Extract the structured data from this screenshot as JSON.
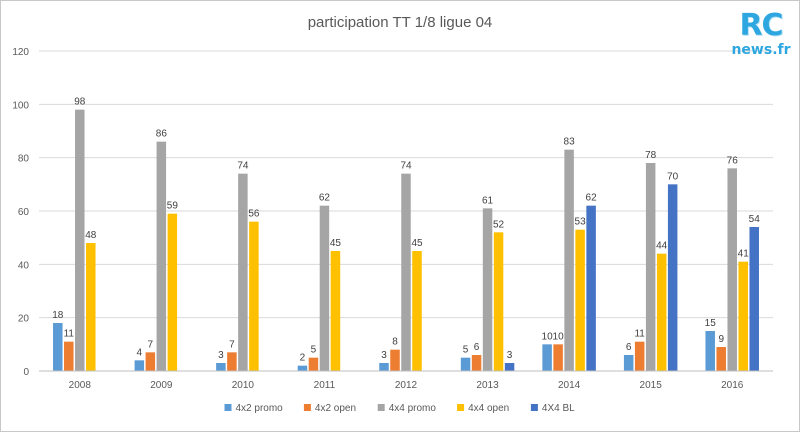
{
  "branding": {
    "logo_main": "RC",
    "logo_sub": "news.fr"
  },
  "colors": {
    "grid": "#d9d9d9",
    "axis": "#bfbfbf",
    "4x2 promo": "#5b9bd5",
    "4x2 open": "#ed7d31",
    "4x4 promo": "#a5a5a5",
    "4x4 open": "#ffc000",
    "4X4 BL": "#4472c4"
  },
  "chart_data": {
    "type": "bar",
    "title": "participation TT 1/8 ligue 04",
    "xlabel": "",
    "ylabel": "",
    "ylim": [
      0,
      120
    ],
    "yticks": [
      0,
      20,
      40,
      60,
      80,
      100,
      120
    ],
    "grid": true,
    "legend_position": "bottom",
    "categories": [
      "2008",
      "2009",
      "2010",
      "2011",
      "2012",
      "2013",
      "2014",
      "2015",
      "2016"
    ],
    "series": [
      {
        "name": "4x2 promo",
        "values": [
          18,
          4,
          3,
          2,
          3,
          5,
          10,
          6,
          15
        ]
      },
      {
        "name": "4x2 open",
        "values": [
          11,
          7,
          7,
          5,
          8,
          6,
          10,
          11,
          9
        ]
      },
      {
        "name": "4x4 promo",
        "values": [
          98,
          86,
          74,
          62,
          74,
          61,
          83,
          78,
          76
        ]
      },
      {
        "name": "4x4 open",
        "values": [
          48,
          59,
          56,
          45,
          45,
          52,
          53,
          44,
          41
        ]
      },
      {
        "name": "4X4 BL",
        "values": [
          null,
          null,
          null,
          null,
          null,
          3,
          62,
          70,
          54
        ]
      }
    ]
  }
}
